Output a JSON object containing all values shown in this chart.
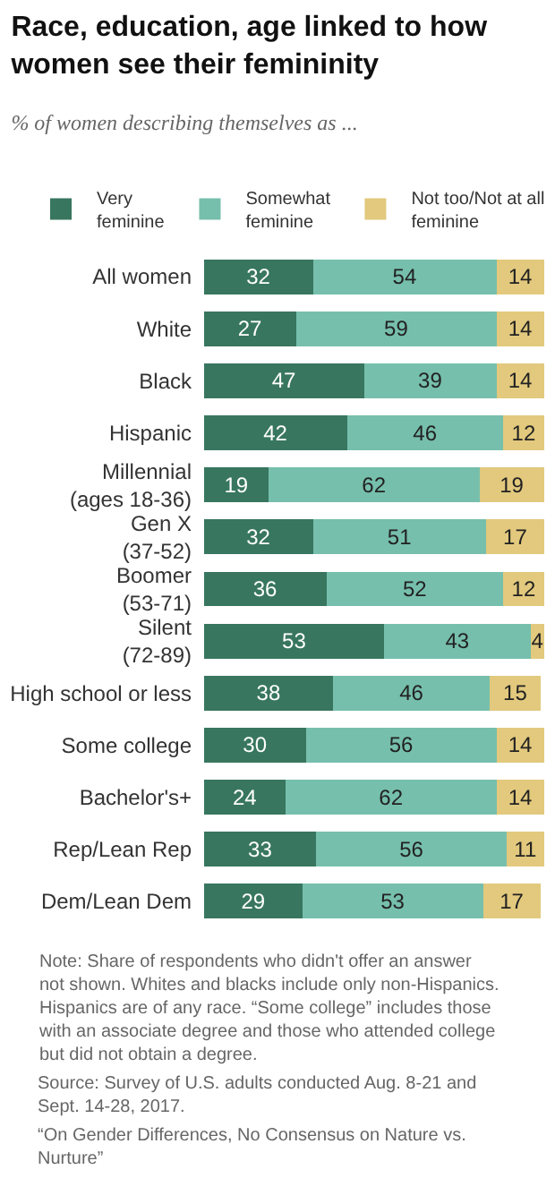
{
  "chart_data": {
    "type": "bar",
    "orientation": "horizontal",
    "stacked": true,
    "data_labels": true,
    "legend": "top",
    "title": "Race, education, age linked to how women see their femininity",
    "subtitle": "% of women describing themselves as ...",
    "categories": [
      "All women",
      "White",
      "Black",
      "Hispanic",
      "Millennial (ages 18-36)",
      "Gen X (37-52)",
      "Boomer (53-71)",
      "Silent (72-89)",
      "High school or less",
      "Some college",
      "Bachelor's+",
      "Rep/Lean Rep",
      "Dem/Lean Dem"
    ],
    "series": [
      {
        "name": "Very feminine",
        "color": "#38765f",
        "values": [
          32,
          27,
          47,
          42,
          19,
          32,
          36,
          53,
          38,
          30,
          24,
          33,
          29
        ]
      },
      {
        "name": "Somewhat feminine",
        "color": "#76bfac",
        "values": [
          54,
          59,
          39,
          46,
          62,
          51,
          52,
          43,
          46,
          56,
          62,
          56,
          53
        ]
      },
      {
        "name": "Not too/Not at all feminine",
        "color": "#e2c97d",
        "values": [
          14,
          14,
          14,
          12,
          19,
          17,
          12,
          4,
          15,
          14,
          14,
          11,
          17
        ]
      }
    ],
    "annotations": [
      "Note: Share of respondents who didn't offer an answer not shown. Whites and blacks include only non-Hispanics. Hispanics are of any race. “Some college” includes those with an associate degree and those who attended college but did not obtain a degree.",
      "Source: Survey of U.S. adults conducted Aug. 8-21 and Sept. 14-28, 2017.",
      "“On Gender Differences, No Consensus on Nature vs. Nurture”"
    ]
  }
}
